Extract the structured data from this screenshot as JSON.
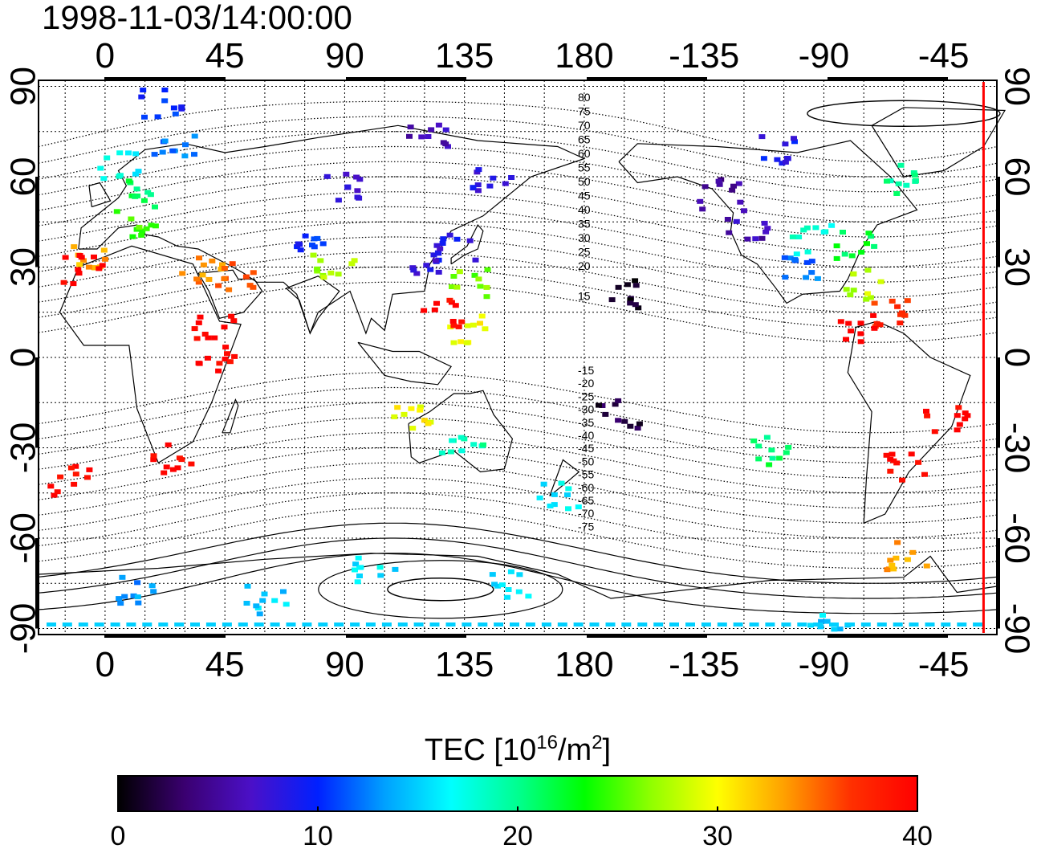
{
  "timestamp": "1998-11-03/14:00:00",
  "map": {
    "lon_ticks": [
      "0",
      "45",
      "90",
      "135",
      "180",
      "-135",
      "-90",
      "-45"
    ],
    "lon_values": [
      0,
      45,
      90,
      135,
      180,
      225,
      270,
      315
    ],
    "lat_ticks": [
      "90",
      "60",
      "30",
      "0",
      "-30",
      "-60",
      "-90"
    ],
    "lat_values": [
      90,
      60,
      30,
      0,
      -30,
      -60,
      -90
    ],
    "lon_range": [
      -25,
      335
    ],
    "lat_range": [
      -92,
      92
    ],
    "grid": "dotted",
    "terminator_lon": 330,
    "terminator_color": "#ff0000",
    "contour_labels_north": [
      "80",
      "75",
      "70",
      "65",
      "60",
      "55",
      "50",
      "45",
      "40",
      "35",
      "30",
      "25",
      "20",
      "15"
    ],
    "contour_labels_south": [
      "-15",
      "-20",
      "-25",
      "-30",
      "-35",
      "-40",
      "-45",
      "-50",
      "-55",
      "-60",
      "-65",
      "-70",
      "-75"
    ]
  },
  "colorbar": {
    "label_prefix": "TEC  [10",
    "label_exp": "16",
    "label_mid": "/m",
    "label_exp2": "2",
    "label_suffix": "]",
    "ticks": [
      "0",
      "10",
      "20",
      "30",
      "40"
    ],
    "range": [
      0,
      40
    ],
    "colors": [
      "#000000",
      "#3a0070",
      "#4b10c8",
      "#0020ff",
      "#00a0ff",
      "#00ffff",
      "#00ff90",
      "#00ff00",
      "#90ff00",
      "#ffff00",
      "#ffa000",
      "#ff3000",
      "#ff0000"
    ]
  },
  "chart_data": {
    "type": "scatter",
    "value_name": "TEC",
    "clusters": [
      {
        "lon": 15,
        "lat": 55,
        "value": 21
      },
      {
        "lon": 10,
        "lat": 45,
        "value": 25
      },
      {
        "lon": 25,
        "lat": 70,
        "value": 12
      },
      {
        "lon": 5,
        "lat": 65,
        "value": 17
      },
      {
        "lon": -5,
        "lat": 35,
        "value": 33
      },
      {
        "lon": -10,
        "lat": 30,
        "value": 40
      },
      {
        "lon": 35,
        "lat": 30,
        "value": 34
      },
      {
        "lon": 48,
        "lat": 28,
        "value": 36
      },
      {
        "lon": 40,
        "lat": 10,
        "value": 40
      },
      {
        "lon": 40,
        "lat": 0,
        "value": 40
      },
      {
        "lon": 25,
        "lat": -33,
        "value": 40
      },
      {
        "lon": -15,
        "lat": -40,
        "value": 40
      },
      {
        "lon": 78,
        "lat": 40,
        "value": 10
      },
      {
        "lon": 90,
        "lat": 58,
        "value": 8
      },
      {
        "lon": 85,
        "lat": 30,
        "value": 27
      },
      {
        "lon": 130,
        "lat": 38,
        "value": 9
      },
      {
        "lon": 135,
        "lat": 26,
        "value": 26
      },
      {
        "lon": 120,
        "lat": 32,
        "value": 8
      },
      {
        "lon": 135,
        "lat": 10,
        "value": 30
      },
      {
        "lon": 125,
        "lat": 15,
        "value": 40
      },
      {
        "lon": 145,
        "lat": 60,
        "value": 8
      },
      {
        "lon": 120,
        "lat": 75,
        "value": 6
      },
      {
        "lon": 195,
        "lat": 22,
        "value": 1
      },
      {
        "lon": 192,
        "lat": -18,
        "value": 2
      },
      {
        "lon": 133,
        "lat": -28,
        "value": 19
      },
      {
        "lon": 170,
        "lat": -45,
        "value": 16
      },
      {
        "lon": 115,
        "lat": -20,
        "value": 30
      },
      {
        "lon": 230,
        "lat": 55,
        "value": 5
      },
      {
        "lon": 240,
        "lat": 45,
        "value": 6
      },
      {
        "lon": 265,
        "lat": 40,
        "value": 18
      },
      {
        "lon": 280,
        "lat": 38,
        "value": 22
      },
      {
        "lon": 260,
        "lat": 30,
        "value": 12
      },
      {
        "lon": 285,
        "lat": 25,
        "value": 28
      },
      {
        "lon": 295,
        "lat": 15,
        "value": 37
      },
      {
        "lon": 283,
        "lat": 10,
        "value": 40
      },
      {
        "lon": 315,
        "lat": -20,
        "value": 40
      },
      {
        "lon": 300,
        "lat": -35,
        "value": 40
      },
      {
        "lon": 300,
        "lat": -65,
        "value": 33
      },
      {
        "lon": 250,
        "lat": 70,
        "value": 9
      },
      {
        "lon": 300,
        "lat": 60,
        "value": 20
      },
      {
        "lon": 60,
        "lat": -80,
        "value": 15
      },
      {
        "lon": 270,
        "lat": -88,
        "value": 15
      },
      {
        "lon": 10,
        "lat": -77,
        "value": 13
      },
      {
        "lon": 150,
        "lat": -75,
        "value": 16
      },
      {
        "lon": 100,
        "lat": -70,
        "value": 16
      },
      {
        "lon": 250,
        "lat": -30,
        "value": 21
      },
      {
        "lon": 20,
        "lat": 85,
        "value": 10
      }
    ]
  }
}
